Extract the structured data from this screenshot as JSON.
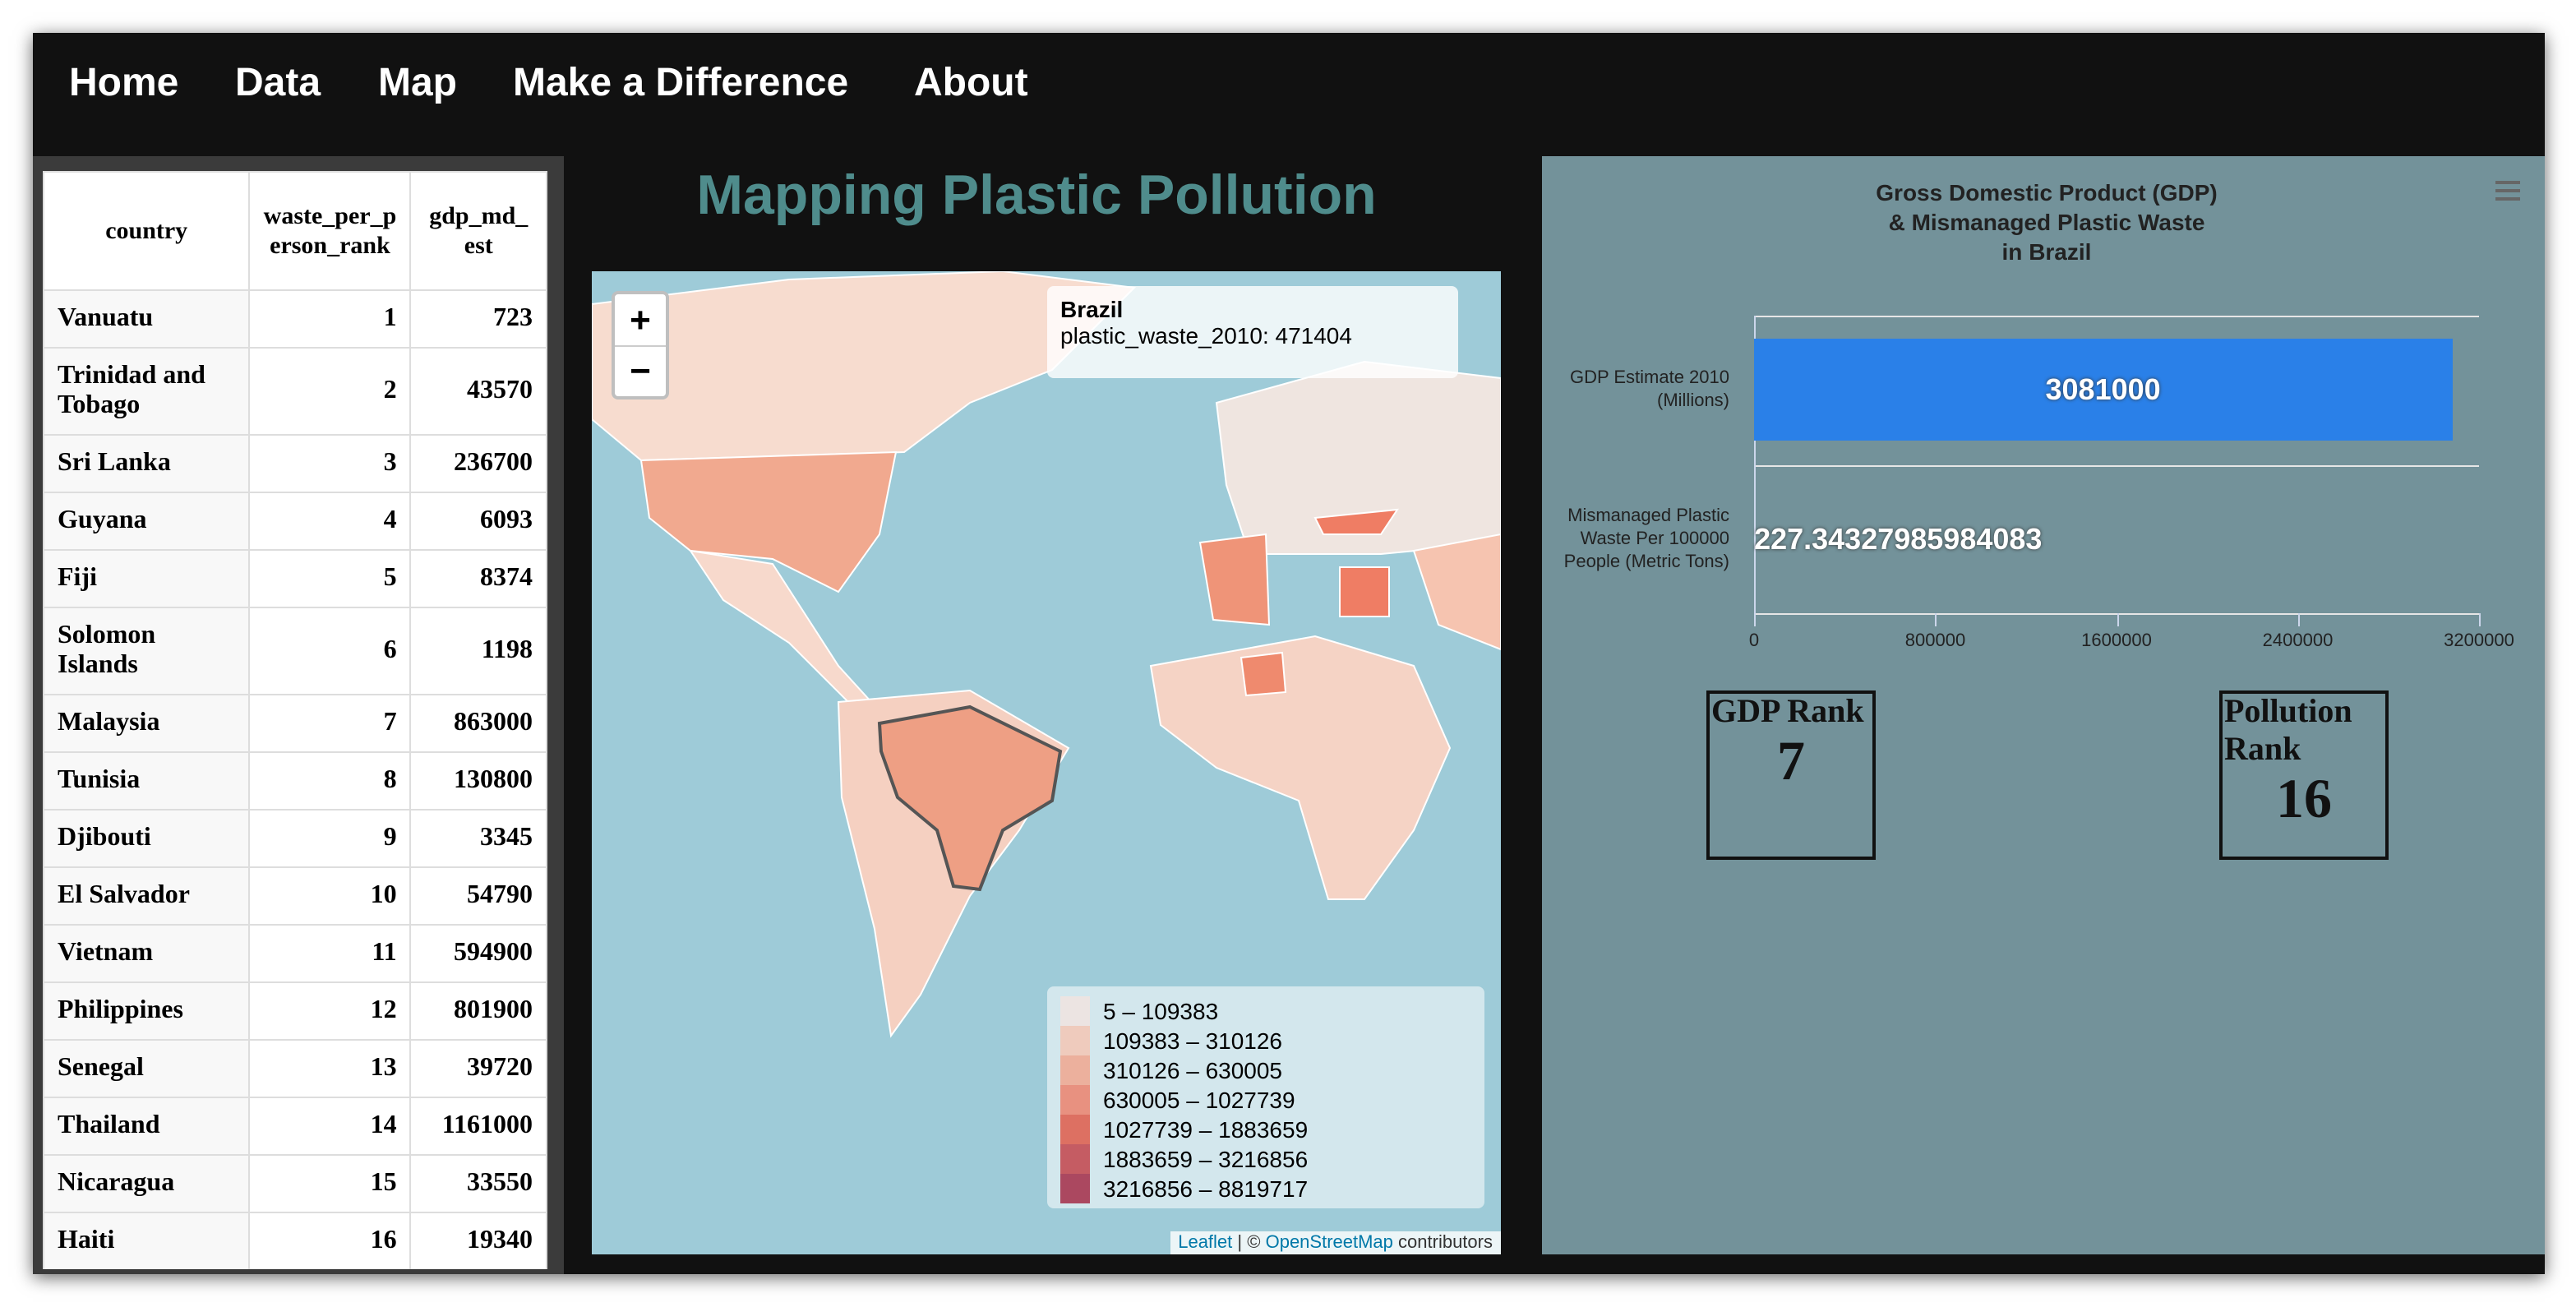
{
  "nav": [
    "Home",
    "Data",
    "Map",
    "Make a Difference",
    "About"
  ],
  "table": {
    "header": [
      "country",
      "waste_per_person_rank",
      "gdp_md_est"
    ],
    "rows": [
      [
        "Vanuatu",
        1,
        723
      ],
      [
        "Trinidad and Tobago",
        2,
        43570
      ],
      [
        "Sri Lanka",
        3,
        236700
      ],
      [
        "Guyana",
        4,
        6093
      ],
      [
        "Fiji",
        5,
        8374
      ],
      [
        "Solomon Islands",
        6,
        1198
      ],
      [
        "Malaysia",
        7,
        863000
      ],
      [
        "Tunisia",
        8,
        130800
      ],
      [
        "Djibouti",
        9,
        3345
      ],
      [
        "El Salvador",
        10,
        54790
      ],
      [
        "Vietnam",
        11,
        594900
      ],
      [
        "Philippines",
        12,
        801900
      ],
      [
        "Senegal",
        13,
        39720
      ],
      [
        "Thailand",
        14,
        1161000
      ],
      [
        "Nicaragua",
        15,
        33550
      ],
      [
        "Haiti",
        16,
        19340
      ]
    ]
  },
  "map": {
    "title": "Mapping Plastic Pollution",
    "zoom": [
      "+",
      "−"
    ],
    "tooltip": {
      "name": "Brazil",
      "text": "plastic_waste_2010: 471404"
    },
    "legend": [
      {
        "label": "5 – 109383",
        "color": "#f2e4de"
      },
      {
        "label": "109383 – 310126",
        "color": "#f6c4b0"
      },
      {
        "label": "310126 – 630005",
        "color": "#f2a288"
      },
      {
        "label": "630005 – 1027739",
        "color": "#ee7c64"
      },
      {
        "label": "1027739 – 1883659",
        "color": "#e0533f"
      },
      {
        "label": "1883659 – 3216856",
        "color": "#c23a40"
      },
      {
        "label": "3216856 – 8819717",
        "color": "#a1203c"
      }
    ],
    "attribution": [
      "Leaflet",
      "| ©",
      "OpenStreetMap",
      "contributors"
    ]
  },
  "chart_data": {
    "type": "bar",
    "orientation": "horizontal",
    "title": [
      "Gross Domestic Product (GDP)",
      "& Mismanaged Plastic Waste",
      "in Brazil"
    ],
    "categories": [
      "GDP Estimate 2010 (Millions)",
      "Mismanaged Plastic Waste Per 100000 People (Metric Tons)"
    ],
    "values": [
      3081000,
      227.34327985984083
    ],
    "color": "#2a80e8",
    "xlim": [
      0,
      3200000
    ],
    "xticks": [
      0,
      800000,
      1600000,
      2400000,
      3200000
    ]
  },
  "ranks": [
    {
      "label": "GDP Rank",
      "value": 7
    },
    {
      "label": "Pollution Rank",
      "value": 16
    }
  ]
}
